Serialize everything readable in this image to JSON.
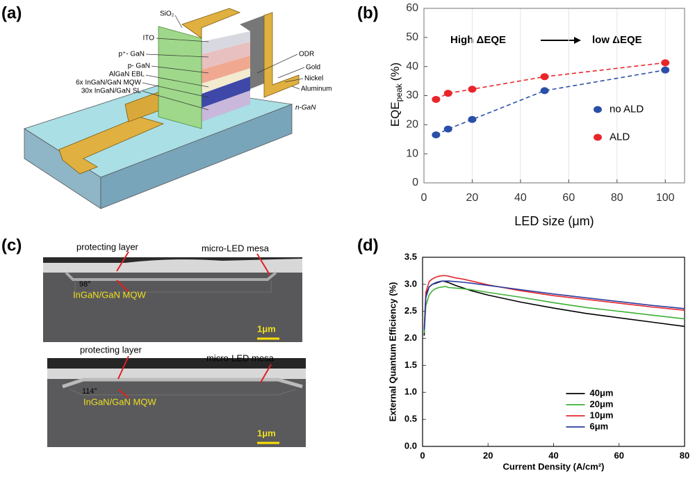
{
  "panel_labels": [
    "(a)",
    "(b)",
    "(c)",
    "(d)"
  ],
  "diagram": {
    "labels": [
      "SiO₂",
      "ITO",
      "p⁺- GaN",
      "p- GaN",
      "AlGaN EBL",
      "6x InGaN/GaN MQW",
      "30x InGaN/GaN SL",
      "ODR",
      "Gold",
      "Nickel",
      "Aluminum",
      "n-GaN"
    ]
  },
  "micrographs": [
    {
      "labels": [
        "protecting layer",
        "micro-LED mesa",
        "98°",
        "InGaN/GaN MQW",
        "1μm"
      ]
    },
    {
      "labels": [
        "protecting layer",
        "micro-LED mesa",
        "114°",
        "InGaN/GaN MQW",
        "1μm"
      ]
    }
  ],
  "chart_data": [
    {
      "type": "scatter",
      "xlabel": "LED size (μm)",
      "ylabel": {
        "main": "EQE",
        "sub": "peak",
        "unit": "(%)"
      },
      "annotations": [
        "High ΔEQE",
        "low ΔEQE"
      ],
      "x": [
        5,
        10,
        20,
        50,
        100
      ],
      "series": [
        {
          "name": "no ALD",
          "color": "#2a4fa8",
          "values": [
            16.5,
            18.5,
            21.8,
            31.7,
            38.8
          ]
        },
        {
          "name": "ALD",
          "color": "#e8262a",
          "values": [
            28.7,
            30.8,
            32.2,
            36.5,
            41.3
          ]
        }
      ],
      "xlim": [
        0,
        108
      ],
      "xticks": [
        0,
        20,
        40,
        60,
        80,
        100
      ],
      "ylim": [
        0,
        60
      ],
      "yticks": [
        0,
        10,
        20,
        30,
        40,
        50,
        60
      ],
      "grid": "x",
      "legend_position": "center right"
    },
    {
      "type": "line",
      "xlabel": "Current Density (A/cm²)",
      "ylabel": "External Quantum Efficiency (%)",
      "x": [
        0.5,
        1,
        2,
        3,
        4,
        5,
        6,
        7,
        8,
        10,
        12,
        15,
        20,
        30,
        40,
        50,
        60,
        70,
        80
      ],
      "series": [
        {
          "name": "40μm",
          "color": "#000000",
          "values": [
            2.05,
            2.8,
            2.95,
            3.0,
            3.02,
            3.04,
            3.06,
            3.05,
            3.03,
            2.98,
            2.94,
            2.88,
            2.8,
            2.67,
            2.56,
            2.46,
            2.38,
            2.3,
            2.22
          ]
        },
        {
          "name": "20μm",
          "color": "#3cb034",
          "values": [
            2.1,
            2.6,
            2.8,
            2.88,
            2.92,
            2.94,
            2.95,
            2.96,
            2.94,
            2.93,
            2.92,
            2.9,
            2.85,
            2.76,
            2.66,
            2.57,
            2.5,
            2.43,
            2.36
          ]
        },
        {
          "name": "10μm",
          "color": "#e3262b",
          "values": [
            2.2,
            2.85,
            3.05,
            3.1,
            3.13,
            3.15,
            3.16,
            3.16,
            3.15,
            3.12,
            3.1,
            3.06,
            2.99,
            2.88,
            2.79,
            2.72,
            2.65,
            2.58,
            2.52
          ]
        },
        {
          "name": "6μm",
          "color": "#2b3a9e",
          "values": [
            2.15,
            2.75,
            2.95,
            3.0,
            3.03,
            3.05,
            3.06,
            3.06,
            3.06,
            3.05,
            3.04,
            3.02,
            2.98,
            2.9,
            2.82,
            2.75,
            2.68,
            2.61,
            2.55
          ]
        }
      ],
      "xlim": [
        0,
        80
      ],
      "xticks": [
        0,
        20,
        40,
        60,
        80
      ],
      "ylim": [
        0,
        3.5
      ],
      "yticks": [
        {
          "value": 0,
          "label": "0.0"
        },
        0.5,
        {
          "value": 1,
          "label": "1.0"
        },
        1.5,
        {
          "value": 2,
          "label": "2.0"
        },
        2.5,
        {
          "value": 3,
          "label": "3.0"
        },
        3.5
      ],
      "grid": false,
      "legend_position": "lower center"
    }
  ]
}
